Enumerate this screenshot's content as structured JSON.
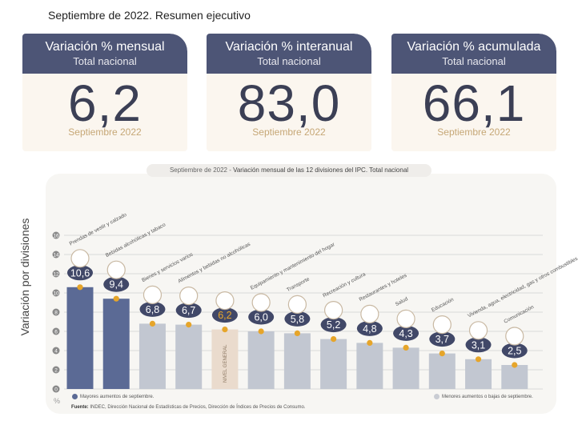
{
  "title": "Septiembre de 2022. Resumen ejecutivo",
  "cards": [
    {
      "title": "Variación % mensual",
      "subtitle": "Total nacional",
      "value": "6,2",
      "month": "Septiembre 2022"
    },
    {
      "title": "Variación % interanual",
      "subtitle": "Total nacional",
      "value": "83,0",
      "month": "Septiembre 2022"
    },
    {
      "title": "Variación % acumulada",
      "subtitle": "Total nacional",
      "value": "66,1",
      "month": "Septiembre 2022"
    }
  ],
  "chart_header": {
    "prefix": "Septiembre de 2022 - ",
    "text": "Variación mensual de las 12 divisiones del IPC. Total nacional"
  },
  "y_axis_title": "Variación por divisiones",
  "unit": "%",
  "legend": {
    "high": "Mayores aumentos de septiembre.",
    "low": "Menores aumentos o bajas de septiembre."
  },
  "source": {
    "label": "Fuente:",
    "text": "INDEC, Dirección Nacional de Estadísticas de Precios, Dirección de Índices de Precios de Consumo."
  },
  "colors": {
    "high": "#5b6a95",
    "low": "#c2c7d1",
    "general": "#eadbcd",
    "dark": "#414868",
    "accent": "#e6a52a"
  },
  "chart_data": {
    "type": "bar",
    "ylim": [
      0,
      16
    ],
    "yticks": [
      0,
      2,
      4,
      6,
      8,
      10,
      12,
      14,
      16
    ],
    "grid": true,
    "categories": [
      "Prendas de vestir y calzado",
      "Bebidas alcohólicas y tabaco",
      "Bienes y servicios varios",
      "Alimentos y bebidas no alcohólicas",
      "NIVEL GENERAL",
      "Equipamiento y mantenimiento del hogar",
      "Transporte",
      "Recreación y cultura",
      "Restaurantes y hoteles",
      "Salud",
      "Educación",
      "Vivienda, agua, electricidad, gas y otros combustibles",
      "Comunicación"
    ],
    "values": [
      10.6,
      9.4,
      6.8,
      6.7,
      6.2,
      6.0,
      5.8,
      5.2,
      4.8,
      4.3,
      3.7,
      3.1,
      2.5
    ],
    "value_labels": [
      "10,6",
      "9,4",
      "6,8",
      "6,7",
      "6,2",
      "6,0",
      "5,8",
      "5,2",
      "4,8",
      "4,3",
      "3,7",
      "3,1",
      "2,5"
    ],
    "groups": [
      "high",
      "high",
      "low",
      "low",
      "general",
      "low",
      "low",
      "low",
      "low",
      "low",
      "low",
      "low",
      "low"
    ],
    "group_names": {
      "high": "Mayores aumentos de septiembre.",
      "low": "Menores aumentos o bajas de septiembre."
    }
  }
}
